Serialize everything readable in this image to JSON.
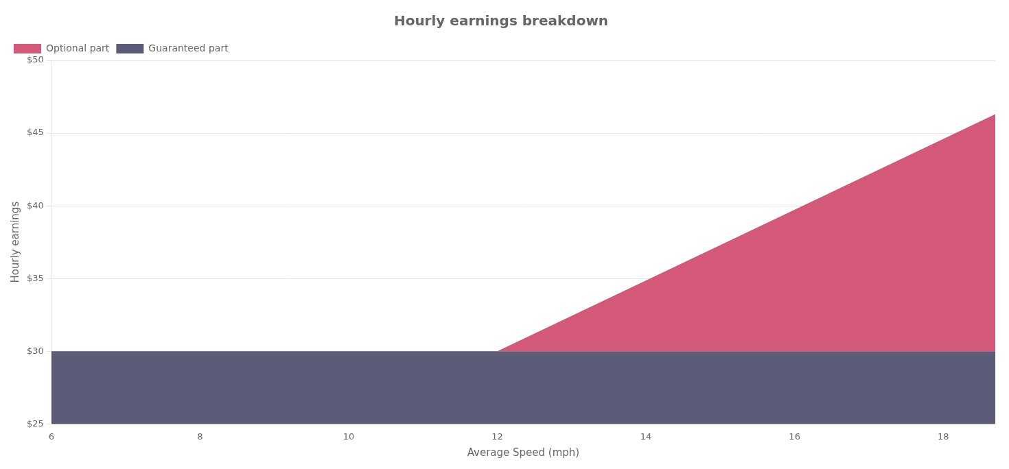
{
  "chart_data": {
    "type": "area",
    "title": "Hourly earnings breakdown",
    "x_label": "Average Speed (mph)",
    "y_label": "Hourly earnings",
    "xlim": [
      6,
      18.7
    ],
    "xticks": [
      6,
      8,
      10,
      12,
      14,
      16,
      18
    ],
    "ylim": [
      25,
      50
    ],
    "yticks": [
      {
        "value": 25,
        "label": "$25"
      },
      {
        "value": 30,
        "label": "$30"
      },
      {
        "value": 35,
        "label": "$35"
      },
      {
        "value": 40,
        "label": "$40"
      },
      {
        "value": 45,
        "label": "$45"
      },
      {
        "value": 50,
        "label": "$50"
      }
    ],
    "grid": "y",
    "legend": "upper left",
    "series": [
      {
        "name": "Optional part",
        "color": "#d45878",
        "x": [
          12,
          18.7
        ],
        "values": [
          30,
          46.3
        ],
        "lower": [
          30,
          30
        ]
      },
      {
        "name": "Guaranteed part",
        "color": "#5c5b78",
        "x": [
          6,
          18.7
        ],
        "values": [
          30,
          30
        ],
        "lower": [
          25,
          25
        ]
      }
    ]
  }
}
